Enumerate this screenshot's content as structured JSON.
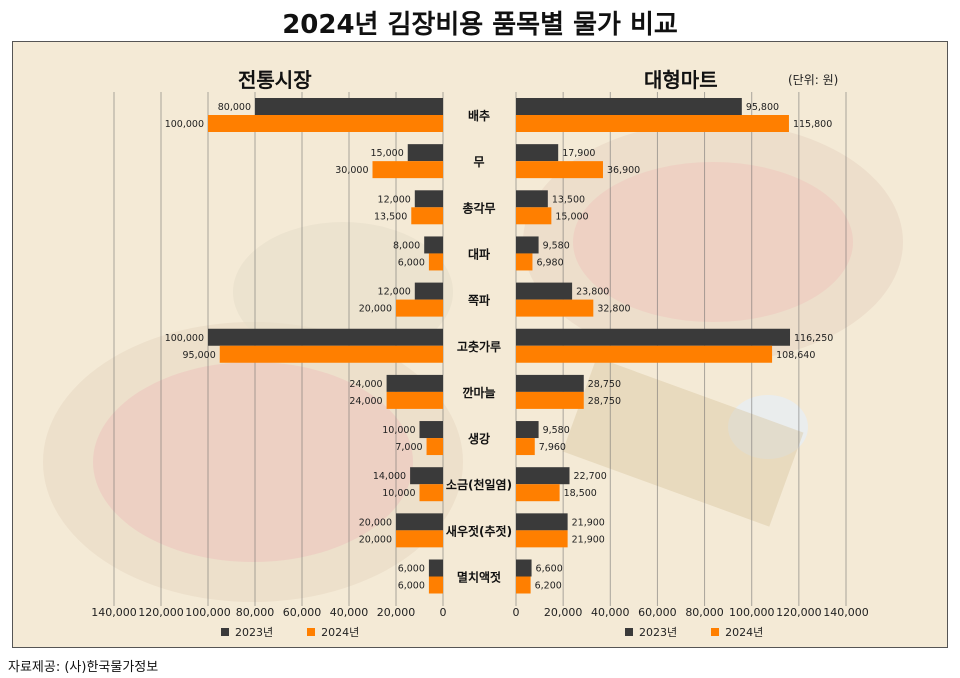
{
  "title": "2024년 김장비용 품목별 물가 비교",
  "source": "자료제공: (사)한국물가정보",
  "unit": "(단위: 원)",
  "colors": {
    "y2023": "#3a3a3a",
    "y2024": "#ff7f00"
  },
  "chart_data": [
    {
      "type": "bar",
      "orientation": "horizontal",
      "title": "전통시장",
      "categories": [
        "배추",
        "무",
        "총각무",
        "대파",
        "쪽파",
        "고춧가루",
        "깐마늘",
        "생강",
        "소금(천일염)",
        "새우젓(추젓)",
        "멸치액젓"
      ],
      "series": [
        {
          "name": "2023년",
          "values": [
            80000,
            15000,
            12000,
            8000,
            12000,
            100000,
            24000,
            10000,
            14000,
            20000,
            6000
          ]
        },
        {
          "name": "2024년",
          "values": [
            100000,
            30000,
            13500,
            6000,
            20000,
            95000,
            24000,
            7000,
            10000,
            20000,
            6000
          ]
        }
      ],
      "value_labels": [
        [
          "80,000",
          "15,000",
          "12,000",
          "8,000",
          "12,000",
          "100,000",
          "24,000",
          "10,000",
          "14,000",
          "20,000",
          "6,000"
        ],
        [
          "100,000",
          "30,000",
          "13,500",
          "6,000",
          "20,000",
          "95,000",
          "24,000",
          "7,000",
          "10,000",
          "20,000",
          "6,000"
        ]
      ],
      "xlim": [
        0,
        140000
      ],
      "axis_reversed": true,
      "ticks": [
        "140,000",
        "120,000",
        "100,000",
        "80,000",
        "60,000",
        "40,000",
        "20,000",
        "0"
      ],
      "grid": true,
      "legend": "bottom"
    },
    {
      "type": "bar",
      "orientation": "horizontal",
      "title": "대형마트",
      "categories": [
        "배추",
        "무",
        "총각무",
        "대파",
        "쪽파",
        "고춧가루",
        "깐마늘",
        "생강",
        "소금(천일염)",
        "새우젓(추젓)",
        "멸치액젓"
      ],
      "series": [
        {
          "name": "2023년",
          "values": [
            95800,
            17900,
            13500,
            9580,
            23800,
            116250,
            28750,
            9580,
            22700,
            21900,
            6600
          ]
        },
        {
          "name": "2024년",
          "values": [
            115800,
            36900,
            15000,
            6980,
            32800,
            108640,
            28750,
            7960,
            18500,
            21900,
            6200
          ]
        }
      ],
      "value_labels": [
        [
          "95,800",
          "17,900",
          "13,500",
          "9,580",
          "23,800",
          "116,250",
          "28,750",
          "9,580",
          "22,700",
          "21,900",
          "6,600"
        ],
        [
          "115,800",
          "36,900",
          "15,000",
          "6,980",
          "32,800",
          "108,640",
          "28,750",
          "7,960",
          "18,500",
          "21,900",
          "6,200"
        ]
      ],
      "xlim": [
        0,
        140000
      ],
      "ticks": [
        "0",
        "20,000",
        "40,000",
        "60,000",
        "80,000",
        "100,000",
        "120,000",
        "140,000"
      ],
      "grid": true,
      "legend": "bottom"
    }
  ]
}
